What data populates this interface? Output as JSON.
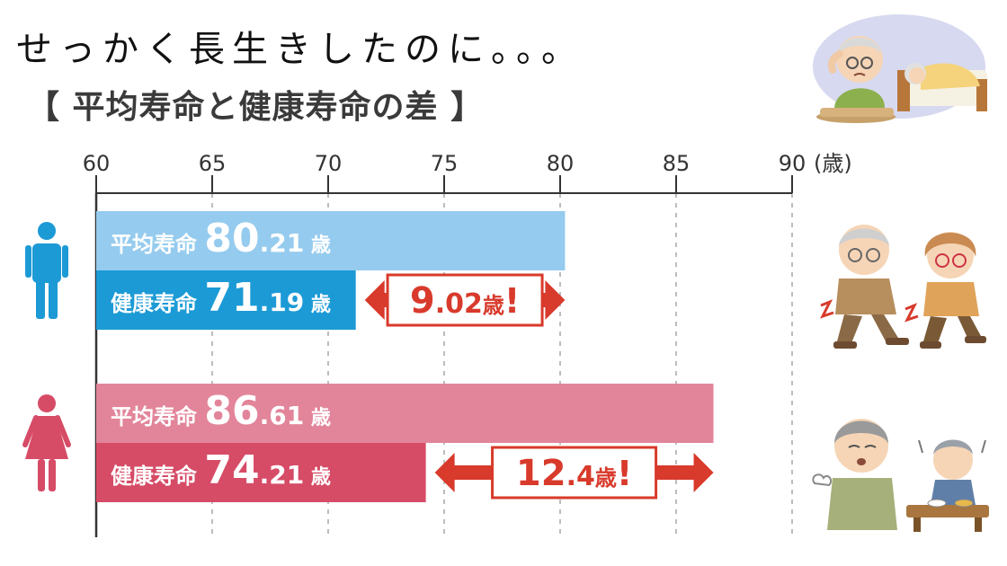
{
  "headline": "せっかく長生きしたのに。。。",
  "subtitle": "【 平均寿命と健康寿命の差 】",
  "colors": {
    "male_avg": "#95cbee",
    "male_healthy": "#1c9ad6",
    "female_avg": "#e2859a",
    "female_healthy": "#d64b66",
    "gap_arrow": "#d83a2b",
    "axis": "#333333"
  },
  "icons": {
    "male": "male-person-icon",
    "female": "female-person-icon"
  },
  "chart_data": {
    "type": "bar",
    "orientation": "horizontal",
    "x_axis": {
      "range": [
        60,
        90
      ],
      "ticks": [
        60,
        65,
        70,
        75,
        80,
        85,
        90
      ],
      "unit": "(歳)",
      "gridlines": "dashed"
    },
    "groups": [
      {
        "key": "male",
        "bars": [
          {
            "label": "平均寿命",
            "value": 80.21,
            "display_int": "80",
            "display_dec": ".21",
            "unit": "歳",
            "color_key": "male_avg"
          },
          {
            "label": "健康寿命",
            "value": 71.19,
            "display_int": "71",
            "display_dec": ".19",
            "unit": "歳",
            "color_key": "male_healthy"
          }
        ],
        "gap": {
          "int": "9",
          "dec": ".02",
          "unit": "歳",
          "mark": "!",
          "from": 71.19,
          "to": 80.21
        }
      },
      {
        "key": "female",
        "bars": [
          {
            "label": "平均寿命",
            "value": 86.61,
            "display_int": "86",
            "display_dec": ".61",
            "unit": "歳",
            "color_key": "female_avg"
          },
          {
            "label": "健康寿命",
            "value": 74.21,
            "display_int": "74",
            "display_dec": ".21",
            "unit": "歳",
            "color_key": "female_healthy"
          }
        ],
        "gap": {
          "int": "12",
          "dec": ".4",
          "unit": "歳",
          "mark": "!",
          "from": 74.21,
          "to": 86.61
        }
      }
    ]
  }
}
